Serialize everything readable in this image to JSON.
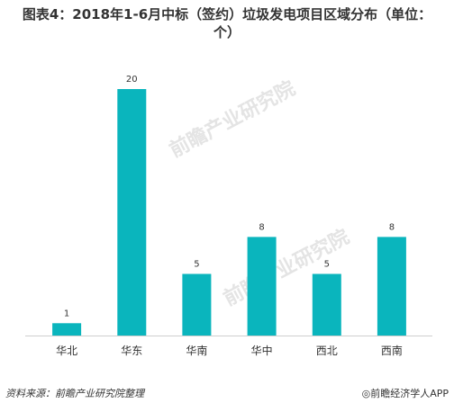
{
  "chart_data": {
    "type": "bar",
    "title_line1": "图表4：2018年1-6月中标（签约）垃圾发电项目区域分布（单位：",
    "title_line2": "个）",
    "categories": [
      "华北",
      "华东",
      "华南",
      "华中",
      "西北",
      "西南"
    ],
    "values": [
      1,
      20,
      5,
      8,
      5,
      8
    ],
    "ylim": [
      0,
      20
    ],
    "grid": false,
    "legend": "none",
    "bar_color": "#0ab5bd"
  },
  "footer": {
    "source": "资料来源：前瞻产业研究院整理",
    "brand": "前瞻经济学人APP"
  },
  "watermark": "前瞻产业研究院"
}
